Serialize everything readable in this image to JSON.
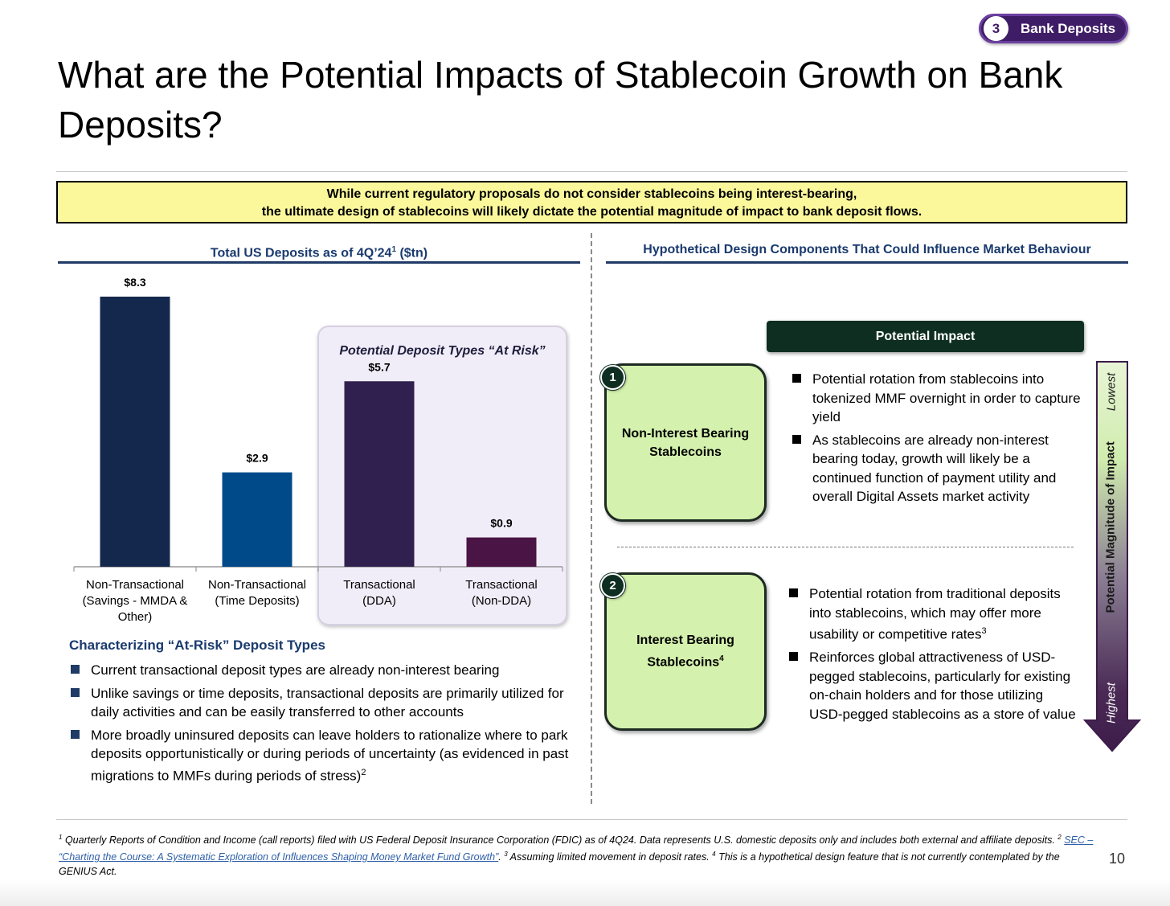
{
  "section_tag": {
    "number": "3",
    "label": "Bank Deposits"
  },
  "title": "What are the Potential Impacts of Stablecoin Growth on Bank Deposits?",
  "callout": {
    "line1": "While current regulatory proposals do not consider stablecoins being interest-bearing,",
    "line2": "the ultimate design of stablecoins will likely dictate the potential magnitude of impact to bank deposit flows."
  },
  "left_panel": {
    "heading": "Total US Deposits as of 4Q’24",
    "heading_sup": "1",
    "heading_suffix": " ($tn)",
    "at_risk_title": "Potential Deposit Types “At Risk”",
    "characterizing_title": "Characterizing “At-Risk” Deposit Types",
    "bullets": [
      "Current transactional deposit types are already non-interest bearing",
      "Unlike savings or time deposits, transactional deposits are primarily utilized for daily activities and can be easily transferred to other accounts",
      "More broadly uninsured deposits can leave holders to rationalize where to park deposits opportunistically or during periods of uncertainty (as evidenced in past migrations to MMFs during periods of stress)"
    ],
    "bullet3_sup": "2"
  },
  "chart_data": {
    "type": "bar",
    "title": "Total US Deposits as of 4Q’24 ($tn)",
    "categories": [
      [
        "Non-Transactional",
        "(Savings - MMDA &",
        "Other)"
      ],
      [
        "Non-Transactional",
        "(Time Deposits)"
      ],
      [
        "Transactional",
        "(DDA)"
      ],
      [
        "Transactional",
        "(Non-DDA)"
      ]
    ],
    "values": [
      8.3,
      2.9,
      5.7,
      0.9
    ],
    "value_labels": [
      "$8.3",
      "$2.9",
      "$5.7",
      "$0.9"
    ],
    "colors": [
      "#14284d",
      "#004a8a",
      "#30204f",
      "#4a1444"
    ],
    "xlabel": "",
    "ylabel": "",
    "ylim": [
      0,
      8.3
    ],
    "grid": false,
    "highlighted_group": "Potential Deposit Types “At Risk”"
  },
  "right_panel": {
    "heading": "Hypothetical Design Components That Could Influence Market Behaviour",
    "impact_header": "Potential Impact",
    "designs": [
      {
        "number": "1",
        "name": "Non-Interest Bearing Stablecoins",
        "name_sup": "",
        "impacts": [
          "Potential rotation from stablecoins into tokenized MMF overnight in order to capture yield",
          "As stablecoins are already non-interest bearing today, growth will likely be a continued function of payment utility and overall Digital Assets market activity"
        ]
      },
      {
        "number": "2",
        "name": "Interest Bearing Stablecoins",
        "name_sup": "4",
        "impacts": [
          "Potential rotation from traditional deposits into stablecoins, which may offer more usability or competitive rates",
          "Reinforces global attractiveness of USD-pegged stablecoins, particularly for existing on-chain holders and for those utilizing USD-pegged stablecoins as a store of value"
        ],
        "impact1_sup": "3"
      }
    ],
    "scale": {
      "label": "Potential Magnitude of Impact",
      "low": "Lowest",
      "high": "Highest"
    }
  },
  "footnote": {
    "p1": "Quarterly Reports of Condition and Income (call reports) filed with US Federal Deposit Insurance Corporation (FDIC) as of 4Q24. Data represents U.S. domestic deposits only and includes both external and affiliate deposits. ",
    "link": "SEC – “Charting the Course: A Systematic Exploration of Influences Shaping Money Market Fund Growth”",
    "p2": ". ",
    "p3": "Assuming limited movement in deposit rates. ",
    "p4": "This is a hypothetical design feature that is not currently contemplated by the GENIUS Act."
  },
  "page_number": "10",
  "colors": {
    "navy": "#1f3b66",
    "callout_bg": "#fbf89c",
    "card_green": "#d4f1ad",
    "dark_green": "#0f2e22",
    "purple": "#3f1d66"
  }
}
